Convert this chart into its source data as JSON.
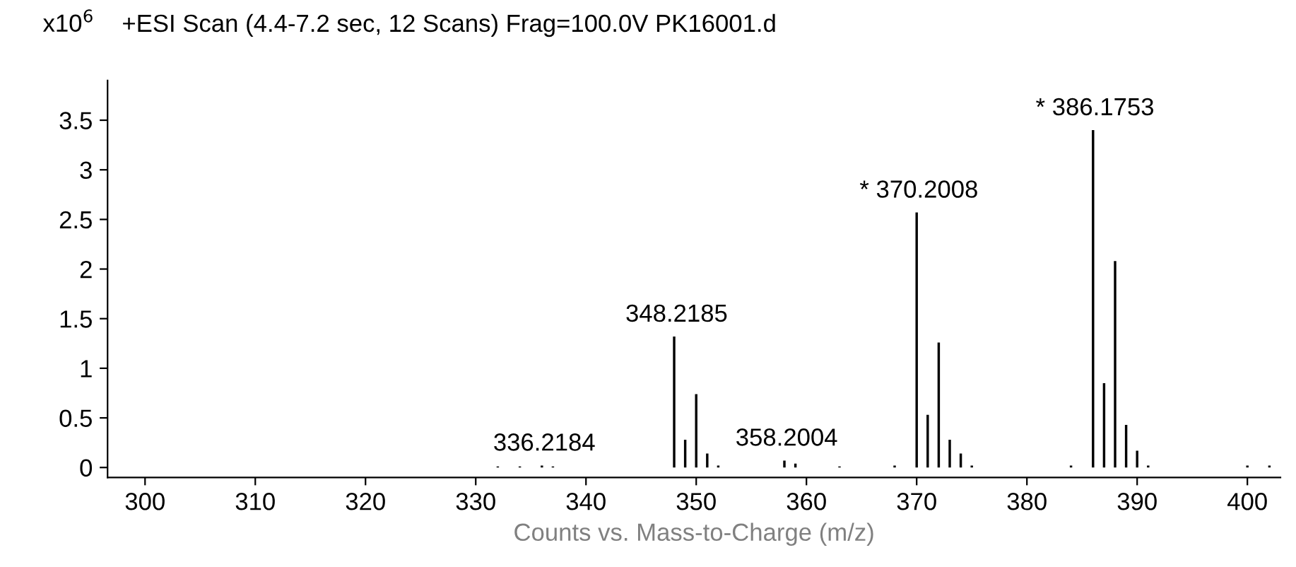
{
  "chart_data": {
    "type": "bar",
    "title": "+ESI Scan (4.4-7.2 sec, 12 Scans) Frag=100.0V PK16001.d",
    "ylabel": "x10$^{6}$",
    "xlabel": "Counts vs. Mass-to-Charge (m/z)",
    "x": [
      332,
      334,
      336,
      337,
      348,
      349,
      350,
      351,
      352,
      358,
      359,
      363,
      368,
      370,
      371,
      372,
      373,
      374,
      375,
      384,
      386,
      387,
      388,
      389,
      390,
      391,
      400,
      402
    ],
    "values": [
      0.01,
      0.01,
      0.02,
      0.01,
      1.32,
      0.28,
      0.74,
      0.14,
      0.02,
      0.07,
      0.04,
      0.01,
      0.02,
      2.57,
      0.53,
      1.26,
      0.28,
      0.14,
      0.02,
      0.02,
      3.4,
      0.85,
      2.08,
      0.43,
      0.17,
      0.02,
      0.02,
      0.02
    ],
    "color": "#000000",
    "xlim": [
      296.6,
      403
    ],
    "ylim": [
      -0.1,
      3.9
    ],
    "xticks": [
      300,
      310,
      320,
      330,
      340,
      350,
      360,
      370,
      380,
      390,
      400
    ],
    "yticks": [
      0,
      0.5,
      1,
      1.5,
      2,
      2.5,
      3,
      3.5
    ],
    "grid": false,
    "annotations": [
      {
        "text": "336.2184",
        "x": 336.2184,
        "y": 0.02
      },
      {
        "text": "348.2185",
        "x": 348.2185,
        "y": 1.32
      },
      {
        "text": "358.2004",
        "x": 358.2004,
        "y": 0.07
      },
      {
        "text": "* 370.2008",
        "x": 370.2008,
        "y": 2.57
      },
      {
        "text": "* 386.1753",
        "x": 386.1753,
        "y": 3.4
      }
    ]
  }
}
